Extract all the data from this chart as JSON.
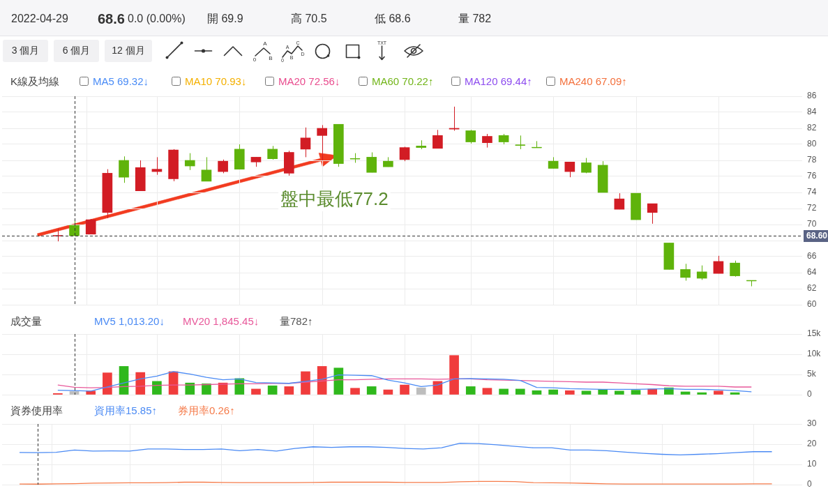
{
  "chart_data": [
    {
      "type": "other",
      "annotations": [
        "2022-04-29",
        "68.6",
        "0.0 (0.00%)",
        "開 69.9",
        "高 70.5",
        "低 68.6",
        "量 782",
        "3 個月",
        "6 個月",
        "12 個月",
        "A",
        "0",
        "B",
        "A",
        "C",
        "0",
        "B",
        "D",
        "TXT"
      ]
    },
    {
      "type": "candlestick",
      "title": "K線及均線",
      "categories": [
        null,
        null,
        null,
        null,
        null,
        null,
        null,
        null,
        null,
        null,
        null,
        null,
        null,
        null,
        null,
        null,
        null,
        null,
        null,
        null,
        null,
        null,
        null,
        null,
        null,
        null,
        null,
        null,
        null,
        null,
        null,
        null,
        null,
        null,
        null,
        null,
        null,
        null,
        null,
        null,
        null,
        null,
        null
      ],
      "ohlc": [
        [
          68.6,
          69.5,
          67.9,
          68.6
        ],
        [
          69.9,
          70.5,
          68.6,
          68.6
        ],
        [
          68.8,
          70.7,
          68.8,
          70.6
        ],
        [
          71.5,
          76.9,
          70.8,
          76.4
        ],
        [
          78.0,
          78.5,
          75.2,
          75.9
        ],
        [
          74.2,
          78.0,
          74.2,
          77.1
        ],
        [
          76.6,
          78.4,
          76.2,
          76.9
        ],
        [
          75.7,
          79.4,
          75.4,
          79.3
        ],
        [
          78.0,
          78.9,
          76.8,
          77.3
        ],
        [
          76.8,
          78.4,
          75.4,
          75.4
        ],
        [
          76.6,
          78.1,
          76.4,
          77.9
        ],
        [
          79.4,
          80.0,
          76.9,
          76.9
        ],
        [
          77.8,
          78.4,
          77.2,
          78.4
        ],
        [
          79.4,
          79.8,
          78.1,
          78.2
        ],
        [
          76.4,
          79.2,
          76.1,
          79.0
        ],
        [
          79.4,
          82.1,
          78.4,
          80.8
        ],
        [
          81.1,
          82.4,
          78.0,
          82.0
        ],
        [
          82.5,
          82.5,
          77.2,
          77.6
        ],
        [
          78.2,
          78.9,
          77.7,
          78.2
        ],
        [
          78.4,
          79.0,
          76.5,
          76.5
        ],
        [
          77.9,
          78.4,
          77.2,
          77.2
        ],
        [
          78.1,
          79.7,
          77.9,
          79.6
        ],
        [
          79.8,
          80.5,
          79.4,
          79.6
        ],
        [
          79.5,
          81.8,
          79.5,
          81.1
        ],
        [
          81.9,
          84.7,
          81.7,
          82.0
        ],
        [
          81.7,
          81.8,
          80.1,
          80.3
        ],
        [
          80.2,
          81.3,
          79.6,
          81.0
        ],
        [
          81.1,
          81.3,
          80.0,
          80.3
        ],
        [
          79.9,
          81.1,
          79.4,
          79.9
        ],
        [
          79.6,
          80.4,
          79.6,
          79.6
        ],
        [
          77.9,
          78.4,
          77.0,
          77.0
        ],
        [
          76.6,
          77.8,
          75.9,
          77.8
        ],
        [
          77.7,
          78.3,
          76.4,
          76.5
        ],
        [
          77.4,
          77.9,
          74.0,
          74.0
        ],
        [
          71.9,
          73.9,
          71.9,
          73.2
        ],
        [
          73.9,
          73.9,
          70.6,
          70.6
        ],
        [
          71.5,
          72.6,
          70.1,
          72.6
        ],
        [
          67.7,
          67.7,
          64.4,
          64.4
        ],
        [
          64.4,
          65.1,
          63.0,
          63.4
        ],
        [
          64.1,
          64.9,
          63.1,
          63.3
        ],
        [
          63.9,
          66.1,
          63.9,
          65.4
        ],
        [
          65.2,
          65.5,
          63.5,
          63.6
        ],
        [
          63.0,
          63.0,
          62.3,
          63.0
        ]
      ],
      "colors": [
        "#d21c24",
        "#5fb30b",
        "#d21c24",
        "#d21c24",
        "#5fb30b",
        "#d21c24",
        "#d21c24",
        "#d21c24",
        "#5fb30b",
        "#5fb30b",
        "#d21c24",
        "#5fb30b",
        "#d21c24",
        "#5fb30b",
        "#d21c24",
        "#d21c24",
        "#d21c24",
        "#5fb30b",
        "#5fb30b",
        "#5fb30b",
        "#5fb30b",
        "#d21c24",
        "#5fb30b",
        "#d21c24",
        "#d21c24",
        "#5fb30b",
        "#d21c24",
        "#5fb30b",
        "#5fb30b",
        "#5fb30b",
        "#5fb30b",
        "#d21c24",
        "#5fb30b",
        "#5fb30b",
        "#d21c24",
        "#5fb30b",
        "#d21c24",
        "#5fb30b",
        "#5fb30b",
        "#5fb30b",
        "#d21c24",
        "#5fb30b",
        "#5fb30b"
      ],
      "ylim": [
        60,
        86
      ],
      "yticks": [
        60,
        62,
        64,
        66,
        {
          "value": 68,
          "label": null
        },
        70,
        72,
        74,
        76,
        78,
        80,
        82,
        84,
        86
      ],
      "grid": true,
      "ref_lines": [
        {
          "axis": "y",
          "value": 68.6,
          "label": "68.60",
          "line_style": "dashed",
          "color": "#333333"
        }
      ],
      "annotations": [
        "MA5 69.32↓",
        "MA10 70.93↓",
        "MA20 72.56↓",
        "MA60 70.22↑",
        "MA120 69.44↑",
        "MA240 67.09↑",
        "盤中最低77.2"
      ]
    },
    {
      "type": "bar",
      "title": "成交量",
      "categories": [
        null,
        null,
        null,
        null,
        null,
        null,
        null,
        null,
        null,
        null,
        null,
        null,
        null,
        null,
        null,
        null,
        null,
        null,
        null,
        null,
        null,
        null,
        null,
        null,
        null,
        null,
        null,
        null,
        null,
        null,
        null,
        null,
        null,
        null,
        null,
        null,
        null,
        null,
        null,
        null,
        null,
        null,
        null
      ],
      "series": [
        {
          "type": "bar",
          "colors": [
            "#f03c3c",
            "#bdbdbd",
            "#f03c3c",
            "#f03c3c",
            "#2fb81c",
            "#f03c3c",
            "#2fb81c",
            "#f03c3c",
            "#2fb81c",
            "#2fb81c",
            "#f03c3c",
            "#2fb81c",
            "#f03c3c",
            "#2fb81c",
            "#f03c3c",
            "#f03c3c",
            "#f03c3c",
            "#2fb81c",
            "#f03c3c",
            "#2fb81c",
            "#f03c3c",
            "#f03c3c",
            "#bdbdbd",
            "#f03c3c",
            "#f03c3c",
            "#2fb81c",
            "#f03c3c",
            "#2fb81c",
            "#2fb81c",
            "#2fb81c",
            "#2fb81c",
            "#f03c3c",
            "#2fb81c",
            "#2fb81c",
            "#2fb81c",
            "#2fb81c",
            "#f03c3c",
            "#2fb81c",
            "#2fb81c",
            "#2fb81c",
            "#f03c3c",
            "#2fb81c",
            "#2fb81c"
          ],
          "values": [
            300,
            782,
            900,
            5400,
            7000,
            5500,
            3300,
            5700,
            2900,
            2700,
            2900,
            4000,
            1400,
            2200,
            2000,
            5700,
            7000,
            6600,
            1600,
            2000,
            1200,
            2400,
            1700,
            3300,
            9700,
            2000,
            1600,
            1400,
            1400,
            1000,
            1200,
            1000,
            900,
            1300,
            900,
            1100,
            1400,
            1700,
            700,
            500,
            900,
            500,
            null
          ]
        },
        {
          "type": "line",
          "name": "MV5 1,013.20↓",
          "color": "#4a8af4",
          "values": [
            1100,
            1013.2,
            900,
            1900,
            2900,
            3900,
            4600,
            5700,
            5100,
            4300,
            3700,
            3900,
            3000,
            2900,
            2800,
            3300,
            3800,
            4900,
            4800,
            4700,
            3600,
            2900,
            2000,
            2400,
            3900,
            4000,
            3900,
            3800,
            3500,
            1800,
            1700,
            1500,
            1400,
            1300,
            1300,
            1300,
            1400,
            1500,
            1300,
            1300,
            1200,
            1000,
            700
          ]
        },
        {
          "type": "line",
          "name": "MV20 1,845.45↓",
          "color": "#e8589a",
          "values": [
            2400,
            1845.45,
            1700,
            1800,
            2000,
            2100,
            2300,
            2400,
            2400,
            2500,
            2600,
            2700,
            2700,
            2800,
            2800,
            3100,
            3400,
            3700,
            3700,
            3800,
            3900,
            3900,
            3900,
            3800,
            3900,
            3900,
            3700,
            3600,
            3500,
            3400,
            3300,
            3200,
            3100,
            3100,
            2900,
            2700,
            2500,
            2200,
            2100,
            2100,
            2100,
            1900,
            1900
          ]
        }
      ],
      "ylim": [
        0,
        15000
      ],
      "yticks": [
        0,
        {
          "value": 5000,
          "label": "5k"
        },
        {
          "value": 10000,
          "label": "10k"
        },
        {
          "value": 15000,
          "label": "15k"
        }
      ],
      "grid": true,
      "legend": "top left",
      "marker": "none",
      "annotations": [
        "量782↑"
      ]
    },
    {
      "type": "line",
      "title": "資券使用率",
      "categories": [
        null,
        null,
        null,
        null,
        null,
        null,
        null,
        null,
        null,
        null,
        null,
        null,
        null,
        null,
        null,
        null,
        null,
        null,
        null,
        null,
        null,
        null,
        null,
        null,
        null,
        null,
        null,
        null,
        null,
        null,
        null,
        null,
        null,
        null,
        null,
        null,
        null,
        null,
        null,
        null,
        null,
        null,
        null
      ],
      "series": [
        {
          "name": "資用率15.85↑",
          "color": "#4a8af4",
          "values": [
            15.9,
            15.85,
            16.0,
            17.1,
            16.6,
            16.7,
            16.6,
            17.6,
            17.6,
            17.4,
            17.4,
            17.6,
            16.8,
            17.4,
            16.6,
            17.9,
            18.7,
            18.4,
            18.7,
            18.7,
            18.4,
            17.9,
            17.6,
            18.2,
            20.5,
            20.3,
            19.7,
            18.9,
            18.2,
            18.2,
            17.1,
            17.1,
            16.8,
            16.1,
            15.5,
            15.0,
            14.7,
            15.0,
            15.3,
            15.8,
            16.3,
            16.3,
            null
          ]
        },
        {
          "name": "券用率0.26↑",
          "color": "#f57b4a",
          "values": [
            0.3,
            0.26,
            0.4,
            0.5,
            0.7,
            0.8,
            0.9,
            0.9,
            1.0,
            1.2,
            1.2,
            1.1,
            1.0,
            1.0,
            1.0,
            1.0,
            1.1,
            1.2,
            1.2,
            1.2,
            1.2,
            1.1,
            1.1,
            1.1,
            1.4,
            1.6,
            1.6,
            1.5,
            1.0,
            0.9,
            0.8,
            0.6,
            0.4,
            0.3,
            0.3,
            0.3,
            0.3,
            0.3,
            0.3,
            0.3,
            0.4,
            0.4,
            null
          ]
        }
      ],
      "ylim": [
        0,
        30
      ],
      "yticks": [
        0,
        10,
        20,
        30
      ],
      "grid": true,
      "legend": "top left",
      "marker": "none"
    }
  ]
}
